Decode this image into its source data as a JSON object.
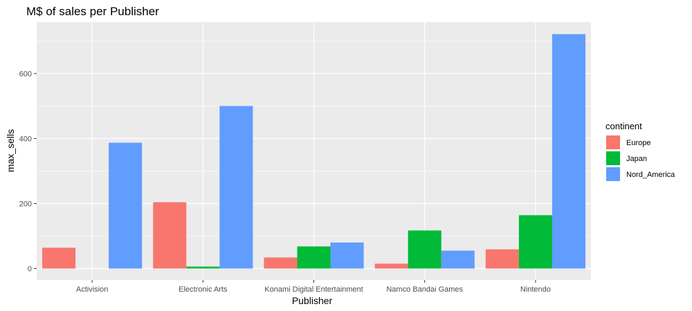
{
  "chart_data": {
    "type": "bar",
    "title": "M$ of sales per Publisher",
    "xlabel": "Publisher",
    "ylabel": "max_sells",
    "categories": [
      "Activision",
      "Electronic Arts",
      "Konami Digital Entertainment",
      "Namco Bandai Games",
      "Nintendo"
    ],
    "series": [
      {
        "name": "Europe",
        "color": "#F8766D",
        "values": [
          64,
          204,
          34,
          15,
          59
        ]
      },
      {
        "name": "Japan",
        "color": "#00BA38",
        "values": [
          0,
          6,
          68,
          117,
          164
        ]
      },
      {
        "name": "Nord_America",
        "color": "#619CFF",
        "values": [
          387,
          500,
          80,
          55,
          721
        ]
      }
    ],
    "ylim": [
      -35,
      758
    ],
    "yticks": [
      0,
      200,
      400,
      600
    ],
    "grid": true,
    "legend": {
      "title": "continent",
      "position": "right"
    },
    "background": "#EBEBEB",
    "gridline_color": "#FFFFFF"
  }
}
